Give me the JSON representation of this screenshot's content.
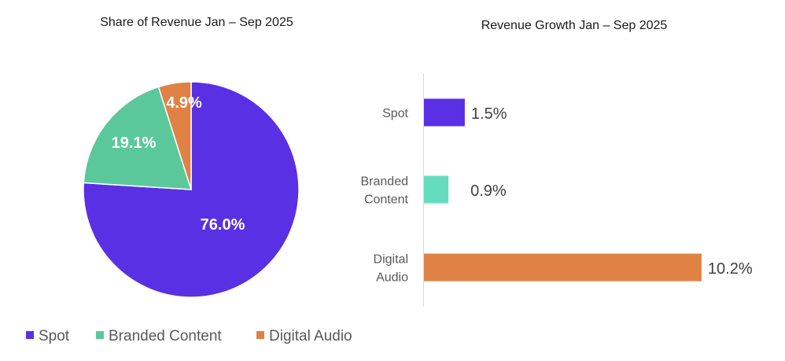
{
  "chart_data": [
    {
      "type": "pie",
      "title": "Share of Revenue Jan – Sep 2025",
      "categories": [
        "Spot",
        "Branded Content",
        "Digital Audio"
      ],
      "values": [
        76.0,
        19.1,
        4.9
      ],
      "labels": [
        "76.0%",
        "19.1%",
        "4.9%"
      ],
      "colors": [
        "#5A30E4",
        "#5BC89C",
        "#E08244"
      ],
      "legend": "bottom"
    },
    {
      "type": "bar",
      "orientation": "horizontal",
      "title": "Revenue Growth Jan – Sep 2025",
      "categories": [
        [
          "Spot"
        ],
        [
          "Branded",
          "Content"
        ],
        [
          "Digital",
          "Audio"
        ]
      ],
      "values": [
        1.5,
        0.9,
        10.2
      ],
      "labels": [
        "1.5%",
        "0.9%",
        "10.2%"
      ],
      "colors": [
        "#5A30E4",
        "#66DCBF",
        "#E08244"
      ],
      "grid": false
    }
  ],
  "legend": [
    {
      "label": "Spot",
      "color": "#5A30E4"
    },
    {
      "label": "Branded Content",
      "color": "#5BC89C"
    },
    {
      "label": "Digital Audio",
      "color": "#E08244"
    }
  ]
}
